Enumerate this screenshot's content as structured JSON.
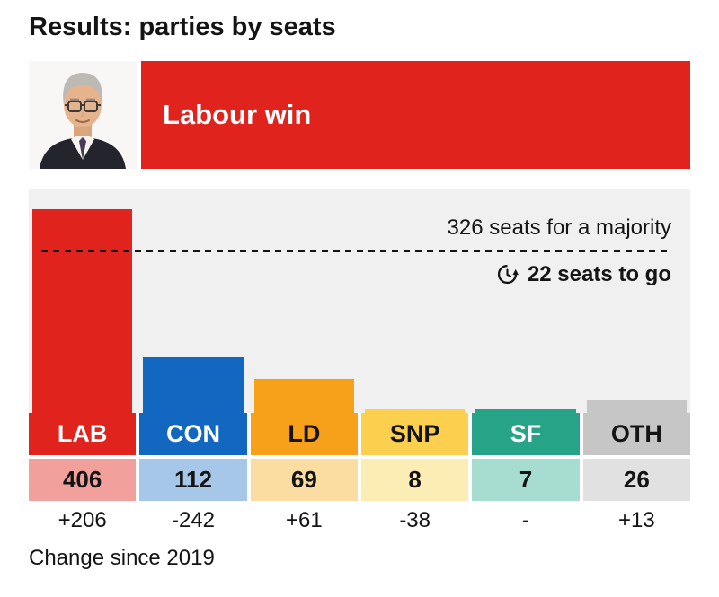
{
  "page": {
    "title": "Results: parties by seats",
    "footer": "Change since 2019"
  },
  "banner": {
    "headline": "Labour win",
    "color": "#e0231c",
    "photo": "keir-starmer-portrait"
  },
  "chart_data": {
    "type": "bar",
    "title": "Results: parties by seats",
    "categories": [
      "LAB",
      "CON",
      "LD",
      "SNP",
      "SF",
      "OTH"
    ],
    "values": [
      406,
      112,
      69,
      8,
      7,
      26
    ],
    "changes": [
      "+206",
      "-242",
      "+61",
      "-38",
      "-",
      "+13"
    ],
    "colors": [
      "#e0231c",
      "#1268c0",
      "#f7a11a",
      "#fcd04e",
      "#27a388",
      "#c6c6c6"
    ],
    "tint_colors": [
      "#f1a09c",
      "#a6c7e8",
      "#fbdca1",
      "#fcedb5",
      "#a7dcd0",
      "#e1e1e1"
    ],
    "label_text_colors": [
      "#ffffff",
      "#ffffff",
      "#141414",
      "#141414",
      "#ffffff",
      "#141414"
    ],
    "majority_label": "326 seats for a majority",
    "majority_value": 326,
    "seats_to_go_label": "22 seats to go",
    "axis_max": 446,
    "ylim": [
      0,
      446
    ],
    "grid": false,
    "legend": false,
    "caption": "Change since 2019"
  }
}
